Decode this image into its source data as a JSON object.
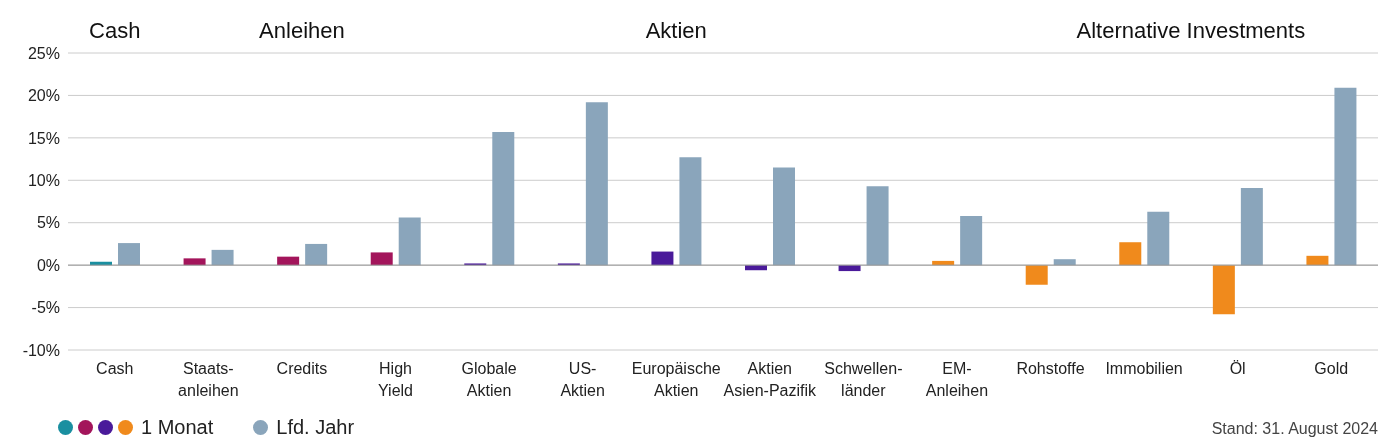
{
  "chart_data": {
    "type": "bar",
    "categories": [
      "Cash",
      "Staats-\nanleihen",
      "Credits",
      "High\nYield",
      "Globale\nAktien",
      "US-\nAktien",
      "Europäische\nAktien",
      "Aktien\nAsien-Pazifik",
      "Schwellen-\nländer",
      "EM-\nAnleihen",
      "Rohstoffe",
      "Immobilien",
      "Öl",
      "Gold"
    ],
    "series": [
      {
        "name": "1 Monat",
        "colors": [
          "#1a8fa0",
          "#a3155b",
          "#a3155b",
          "#a3155b",
          "#4a1a9a",
          "#4a1a9a",
          "#4a1a9a",
          "#4a1a9a",
          "#4a1a9a",
          "#f08a1c",
          "#f08a1c",
          "#f08a1c",
          "#f08a1c",
          "#f08a1c"
        ],
        "values": [
          0.4,
          0.8,
          1.0,
          1.5,
          0.2,
          0.2,
          1.6,
          -0.6,
          -0.7,
          0.5,
          -2.3,
          2.7,
          -5.8,
          1.1
        ]
      },
      {
        "name": "Lfd. Jahr",
        "color": "#8aa5bb",
        "values": [
          2.6,
          1.8,
          2.5,
          5.6,
          15.7,
          19.2,
          12.7,
          11.5,
          9.3,
          5.8,
          0.7,
          6.3,
          9.1,
          20.9
        ]
      }
    ],
    "ylim": [
      -10,
      25
    ],
    "yticks": [
      {
        "value": -10,
        "label": "-10%"
      },
      {
        "value": -5,
        "label": "-5%"
      },
      {
        "value": 0,
        "label": "0%"
      },
      {
        "value": 5,
        "label": "5%"
      },
      {
        "value": 10,
        "label": "10%"
      },
      {
        "value": 15,
        "label": "15%"
      },
      {
        "value": 20,
        "label": "20%"
      },
      {
        "value": 25,
        "label": "25%"
      }
    ],
    "grid": "y",
    "legend": "bottom left",
    "annotations": [
      "Cash",
      "Anleihen",
      "Aktien",
      "Alternative Investments",
      "Stand: 31. August 2024"
    ]
  }
}
